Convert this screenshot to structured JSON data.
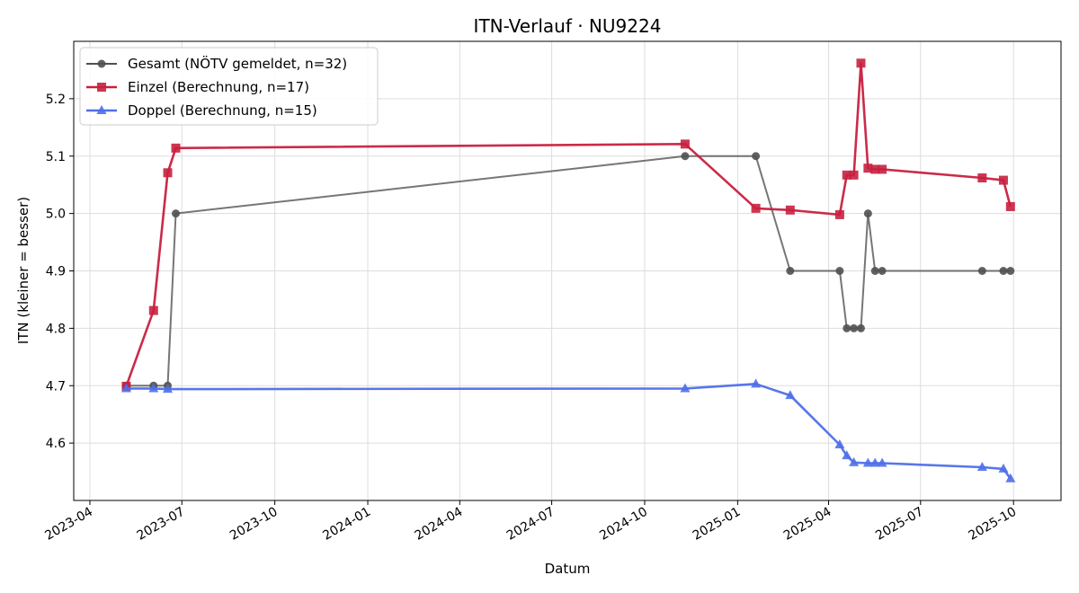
{
  "chart_data": {
    "type": "line",
    "title": "ITN-Verlauf · NU9224",
    "xlabel": "Datum",
    "ylabel": "ITN  (kleiner = besser)",
    "x_axis": "date",
    "xlim": [
      "2023-03-16",
      "2025-11-17"
    ],
    "ylim": [
      4.5,
      5.3
    ],
    "x_ticks": [
      "2023-04-01",
      "2023-07-01",
      "2023-10-01",
      "2024-01-01",
      "2024-04-01",
      "2024-07-01",
      "2024-10-01",
      "2025-01-01",
      "2025-04-01",
      "2025-07-01",
      "2025-10-01"
    ],
    "x_tick_labels": [
      "2023-04",
      "2023-07",
      "2023-10",
      "2024-01",
      "2024-04",
      "2024-07",
      "2024-10",
      "2025-01",
      "2025-04",
      "2025-07",
      "2025-10"
    ],
    "y_ticks": [
      4.6,
      4.7,
      4.8,
      4.9,
      5.0,
      5.1,
      5.2
    ],
    "y_tick_labels": [
      "4.6",
      "4.7",
      "4.8",
      "4.9",
      "5.0",
      "5.1",
      "5.2"
    ],
    "grid": true,
    "legend_position": "top-left",
    "series": [
      {
        "name": "Gesamt (NÖTV gemeldet, n=32)",
        "color": "#505050",
        "marker": "circle",
        "points": [
          [
            "2023-05-07",
            4.7
          ],
          [
            "2023-06-03",
            4.7
          ],
          [
            "2023-06-17",
            4.7
          ],
          [
            "2023-06-25",
            5.0
          ],
          [
            "2024-11-10",
            5.1
          ],
          [
            "2025-01-19",
            5.1
          ],
          [
            "2025-02-22",
            4.9
          ],
          [
            "2025-04-12",
            4.9
          ],
          [
            "2025-04-19",
            4.8
          ],
          [
            "2025-04-26",
            4.8
          ],
          [
            "2025-05-03",
            4.8
          ],
          [
            "2025-05-10",
            5.0
          ],
          [
            "2025-05-17",
            4.9
          ],
          [
            "2025-05-24",
            4.9
          ],
          [
            "2025-08-31",
            4.9
          ],
          [
            "2025-09-21",
            4.9
          ],
          [
            "2025-09-28",
            4.9
          ]
        ]
      },
      {
        "name": "Einzel (Berechnung, n=17)",
        "color": "#c8203f",
        "marker": "square",
        "points": [
          [
            "2023-05-07",
            4.699
          ],
          [
            "2023-06-03",
            4.831
          ],
          [
            "2023-06-17",
            5.071
          ],
          [
            "2023-06-25",
            5.114
          ],
          [
            "2024-11-10",
            5.121
          ],
          [
            "2025-01-19",
            5.009
          ],
          [
            "2025-02-22",
            5.006
          ],
          [
            "2025-04-12",
            4.998
          ],
          [
            "2025-04-19",
            5.067
          ],
          [
            "2025-04-26",
            5.067
          ],
          [
            "2025-05-03",
            5.262
          ],
          [
            "2025-05-10",
            5.079
          ],
          [
            "2025-05-17",
            5.077
          ],
          [
            "2025-05-24",
            5.077
          ],
          [
            "2025-08-31",
            5.062
          ],
          [
            "2025-09-21",
            5.058
          ],
          [
            "2025-09-28",
            5.012
          ]
        ]
      },
      {
        "name": "Doppel (Berechnung, n=15)",
        "color": "#4f6fea",
        "marker": "triangle",
        "points": [
          [
            "2023-05-07",
            4.695
          ],
          [
            "2023-06-03",
            4.695
          ],
          [
            "2023-06-17",
            4.694
          ],
          [
            "2024-11-10",
            4.695
          ],
          [
            "2025-01-19",
            4.703
          ],
          [
            "2025-02-22",
            4.683
          ],
          [
            "2025-04-12",
            4.597
          ],
          [
            "2025-04-19",
            4.578
          ],
          [
            "2025-04-26",
            4.566
          ],
          [
            "2025-05-10",
            4.565
          ],
          [
            "2025-05-17",
            4.565
          ],
          [
            "2025-05-24",
            4.565
          ],
          [
            "2025-08-31",
            4.558
          ],
          [
            "2025-09-21",
            4.555
          ],
          [
            "2025-09-28",
            4.538
          ]
        ]
      }
    ]
  }
}
